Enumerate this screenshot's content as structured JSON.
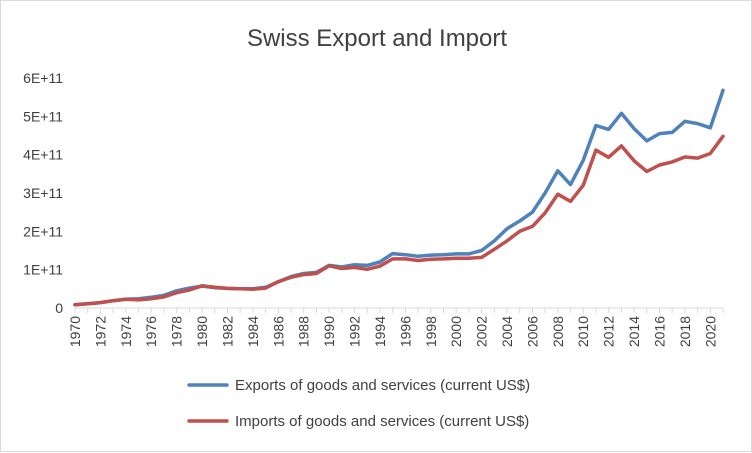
{
  "chart_data": {
    "type": "line",
    "title": "Swiss  Export and Import",
    "xlabel": "",
    "ylabel": "",
    "ylim": [
      0,
      600000000000
    ],
    "yticks": [
      {
        "value": 0,
        "label": "0"
      },
      {
        "value": 100000000000,
        "label": "1E+11"
      },
      {
        "value": 200000000000,
        "label": "2E+11"
      },
      {
        "value": 300000000000,
        "label": "3E+11"
      },
      {
        "value": 400000000000,
        "label": "4E+11"
      },
      {
        "value": 500000000000,
        "label": "5E+11"
      },
      {
        "value": 600000000000,
        "label": "6E+11"
      }
    ],
    "x": [
      1970,
      1971,
      1972,
      1973,
      1974,
      1975,
      1976,
      1977,
      1978,
      1979,
      1980,
      1981,
      1982,
      1983,
      1984,
      1985,
      1986,
      1987,
      1988,
      1989,
      1990,
      1991,
      1992,
      1993,
      1994,
      1995,
      1996,
      1997,
      1998,
      1999,
      2000,
      2001,
      2002,
      2003,
      2004,
      2005,
      2006,
      2007,
      2008,
      2009,
      2010,
      2011,
      2012,
      2013,
      2014,
      2015,
      2016,
      2017,
      2018,
      2019,
      2020,
      2021
    ],
    "xtick_labels": [
      "1970",
      "1972",
      "1974",
      "1976",
      "1978",
      "1980",
      "1982",
      "1984",
      "1986",
      "1988",
      "1990",
      "1992",
      "1994",
      "1996",
      "1998",
      "2000",
      "2002",
      "2004",
      "2006",
      "2008",
      "2010",
      "2012",
      "2014",
      "2016",
      "2018",
      "2020"
    ],
    "series": [
      {
        "name": "Exports of goods and services (current US$)",
        "color": "#4f81bd",
        "values": [
          8000000000.0,
          11000000000.0,
          14000000000.0,
          19000000000.0,
          23000000000.0,
          24000000000.0,
          28000000000.0,
          33000000000.0,
          45000000000.0,
          52000000000.0,
          57000000000.0,
          53000000000.0,
          51000000000.0,
          50000000000.0,
          50000000000.0,
          54000000000.0,
          68000000000.0,
          82000000000.0,
          90000000000.0,
          93000000000.0,
          111000000000.0,
          107000000000.0,
          113000000000.0,
          111000000000.0,
          120000000000.0,
          142000000000.0,
          139000000000.0,
          135000000000.0,
          138000000000.0,
          139000000000.0,
          141000000000.0,
          141000000000.0,
          150000000000.0,
          175000000000.0,
          207000000000.0,
          227000000000.0,
          250000000000.0,
          300000000000.0,
          358000000000.0,
          322000000000.0,
          385000000000.0,
          476000000000.0,
          466000000000.0,
          508000000000.0,
          468000000000.0,
          436000000000.0,
          455000000000.0,
          458000000000.0,
          487000000000.0,
          481000000000.0,
          470000000000.0,
          568000000000.0
        ]
      },
      {
        "name": "Imports of goods and services (current US$)",
        "color": "#c0504d",
        "values": [
          9000000000.0,
          11000000000.0,
          14000000000.0,
          19000000000.0,
          23000000000.0,
          21000000000.0,
          24000000000.0,
          29000000000.0,
          40000000000.0,
          47000000000.0,
          58000000000.0,
          54000000000.0,
          51000000000.0,
          50000000000.0,
          49000000000.0,
          52000000000.0,
          69000000000.0,
          80000000000.0,
          87000000000.0,
          90000000000.0,
          110000000000.0,
          103000000000.0,
          106000000000.0,
          101000000000.0,
          109000000000.0,
          128000000000.0,
          128000000000.0,
          124000000000.0,
          127000000000.0,
          128000000000.0,
          130000000000.0,
          130000000000.0,
          132000000000.0,
          153000000000.0,
          175000000000.0,
          200000000000.0,
          213000000000.0,
          248000000000.0,
          297000000000.0,
          278000000000.0,
          320000000000.0,
          412000000000.0,
          393000000000.0,
          423000000000.0,
          384000000000.0,
          356000000000.0,
          373000000000.0,
          381000000000.0,
          394000000000.0,
          391000000000.0,
          403000000000.0,
          448000000000.0
        ]
      }
    ],
    "legend_position": "bottom",
    "grid": false
  }
}
